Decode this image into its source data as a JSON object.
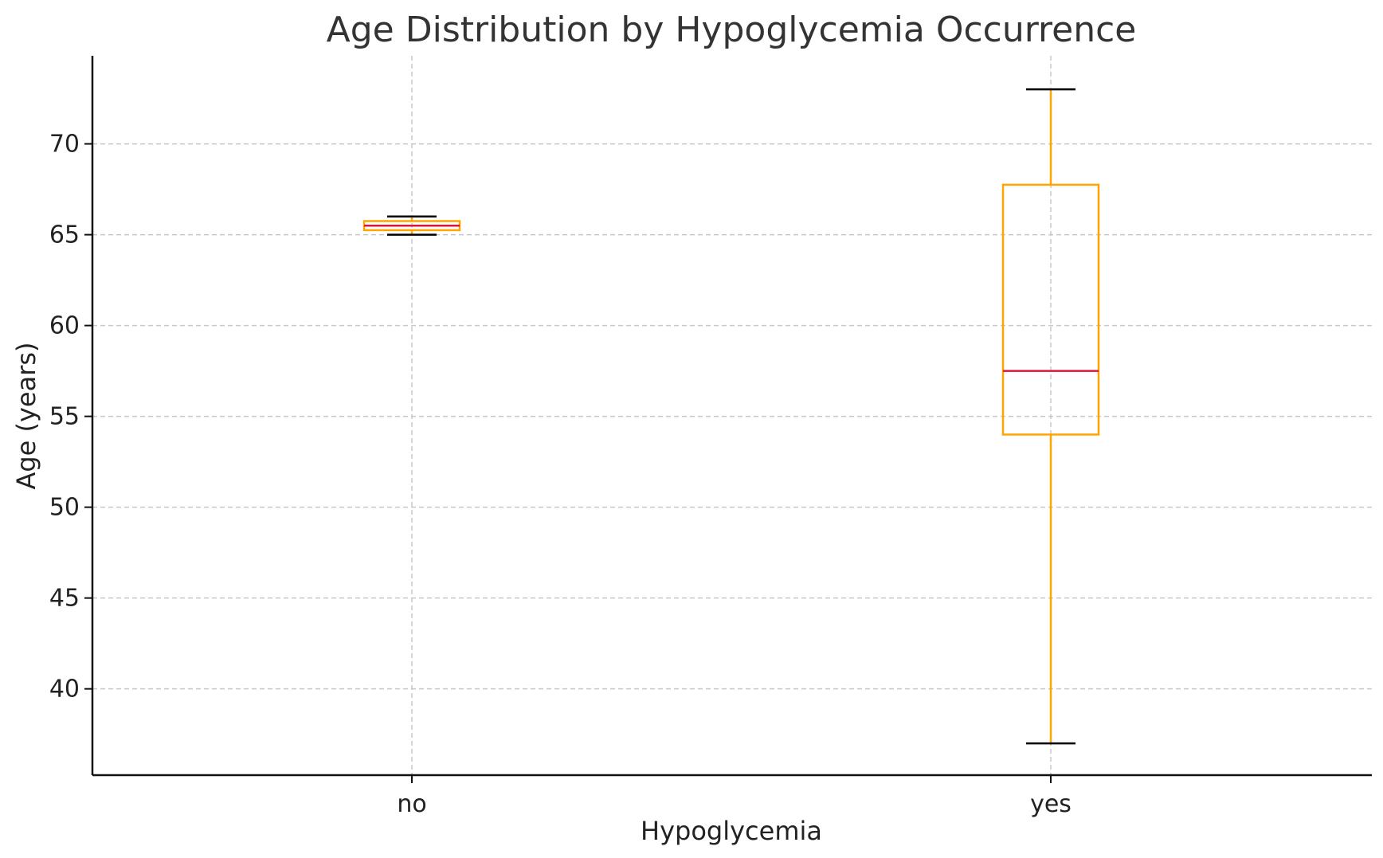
{
  "chart_data": {
    "type": "boxplot",
    "title": "Age Distribution by Hypoglycemia Occurrence",
    "xlabel": "Hypoglycemia",
    "ylabel": "Age (years)",
    "categories": [
      "no",
      "yes"
    ],
    "boxes": [
      {
        "category": "no",
        "whisker_low": 65.0,
        "q1": 65.25,
        "median": 65.5,
        "q3": 65.75,
        "whisker_high": 66.0
      },
      {
        "category": "yes",
        "whisker_low": 37.0,
        "q1": 54.0,
        "median": 57.5,
        "q3": 67.75,
        "whisker_high": 73.0
      }
    ],
    "yticks": [
      40,
      45,
      50,
      55,
      60,
      65,
      70
    ],
    "ylim": [
      35.25,
      74.85
    ],
    "grid": true,
    "colors": {
      "box": "#FFA500",
      "median": "#DC143C",
      "whisker_cap": "#000000",
      "grid": "#c8c8c8"
    }
  }
}
